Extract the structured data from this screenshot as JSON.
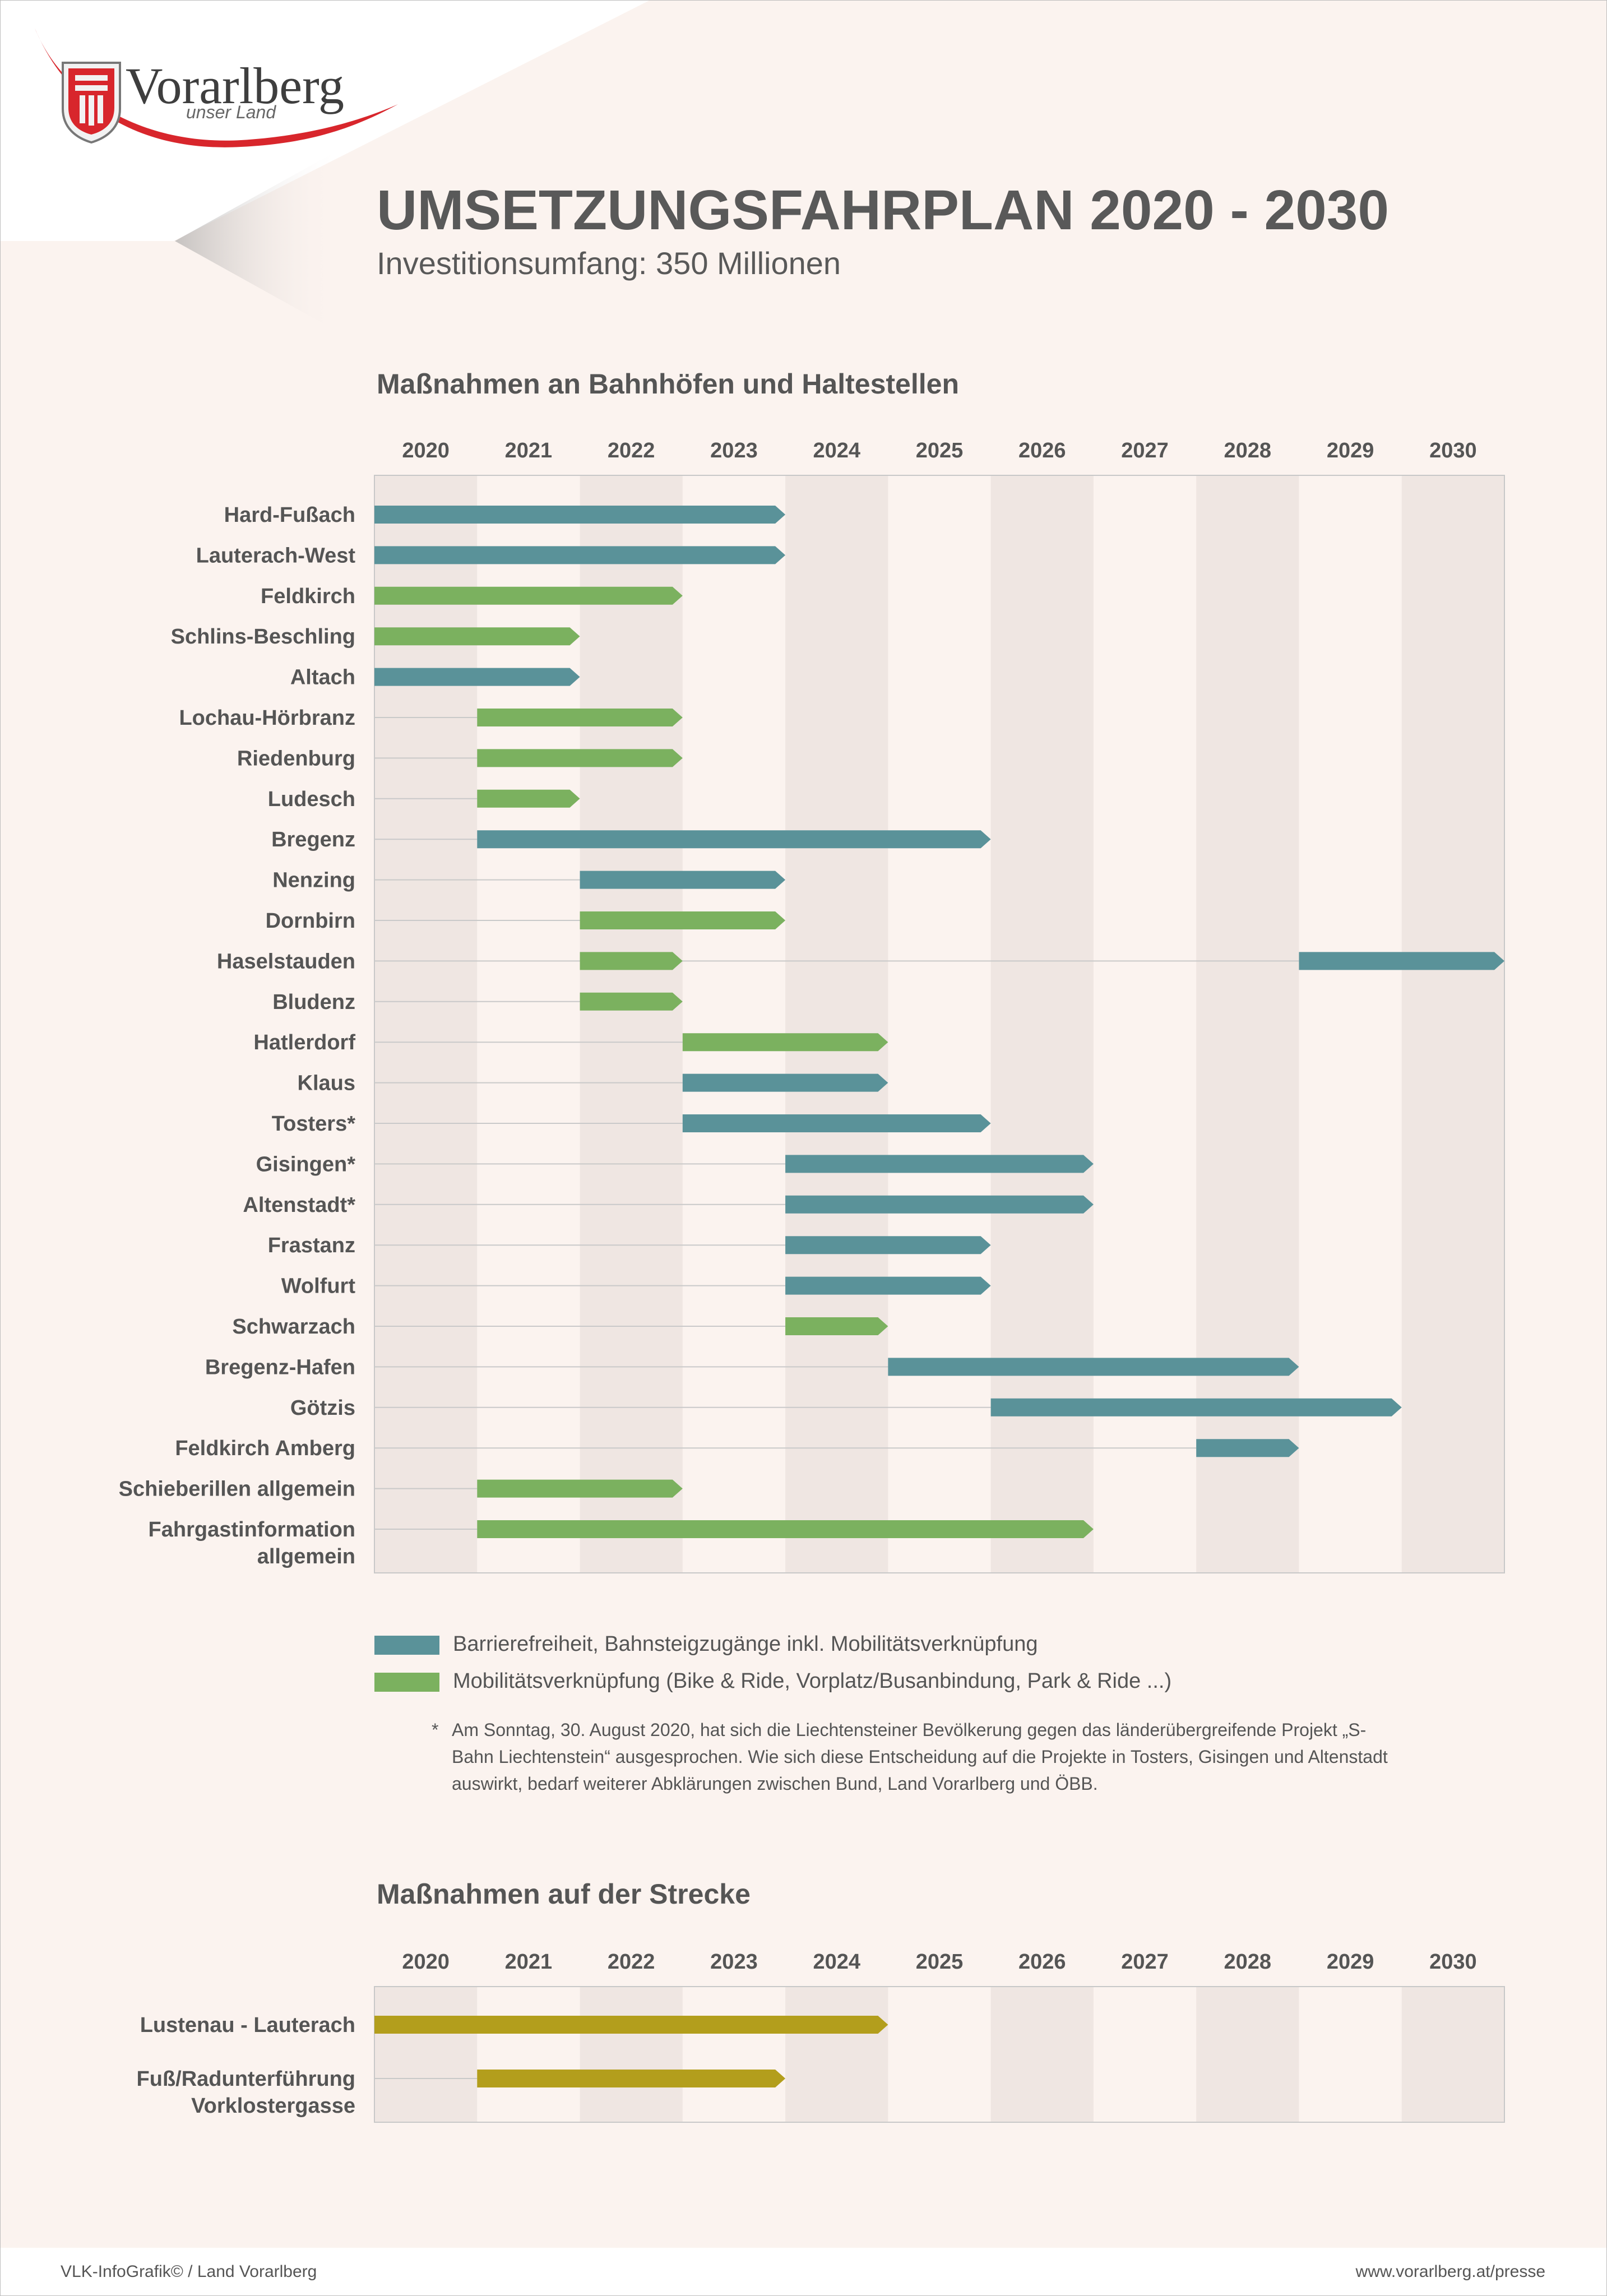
{
  "header": {
    "logo_name": "Vorarlberg",
    "logo_tagline": "unser Land",
    "title": "UMSETZUNGSFAHRPLAN 2020 - 2030",
    "subtitle": "Investitionsumfang: 350 Millionen"
  },
  "colors": {
    "barrier": "#5a9299",
    "mobility": "#7bb15f",
    "track": "#b39e1c",
    "band": "#efe6e2",
    "rowline": "#c9c9c9",
    "frame": "#c8c8c8",
    "text": "#555555"
  },
  "chart_data": [
    {
      "type": "gantt",
      "title": "Maßnahmen an Bahnhöfen und Haltestellen",
      "years": [
        "2020",
        "2021",
        "2022",
        "2023",
        "2024",
        "2025",
        "2026",
        "2027",
        "2028",
        "2029",
        "2030"
      ],
      "rows": [
        {
          "label": "Hard-Fußach",
          "start": 2020,
          "end": 2023,
          "category": "barrier"
        },
        {
          "label": "Lauterach-West",
          "start": 2020,
          "end": 2023,
          "category": "barrier"
        },
        {
          "label": "Feldkirch",
          "start": 2020,
          "end": 2022,
          "category": "mobility"
        },
        {
          "label": "Schlins-Beschling",
          "start": 2020,
          "end": 2021,
          "category": "mobility"
        },
        {
          "label": "Altach",
          "start": 2020,
          "end": 2021,
          "category": "barrier"
        },
        {
          "label": "Lochau-Hörbranz",
          "start": 2021,
          "end": 2022,
          "category": "mobility"
        },
        {
          "label": "Riedenburg",
          "start": 2021,
          "end": 2022,
          "category": "mobility"
        },
        {
          "label": "Ludesch",
          "start": 2021,
          "end": 2021,
          "category": "mobility"
        },
        {
          "label": "Bregenz",
          "start": 2021,
          "end": 2025,
          "category": "barrier"
        },
        {
          "label": "Nenzing",
          "start": 2022,
          "end": 2023,
          "category": "barrier"
        },
        {
          "label": "Dornbirn",
          "start": 2022,
          "end": 2023,
          "category": "mobility"
        },
        {
          "label": "Haselstauden",
          "start": 2022,
          "end": 2022,
          "category": "mobility",
          "extra": {
            "start": 2029,
            "end": 2030,
            "category": "barrier"
          }
        },
        {
          "label": "Bludenz",
          "start": 2022,
          "end": 2022,
          "category": "mobility"
        },
        {
          "label": "Hatlerdorf",
          "start": 2023,
          "end": 2024,
          "category": "mobility"
        },
        {
          "label": "Klaus",
          "start": 2023,
          "end": 2024,
          "category": "barrier"
        },
        {
          "label": "Tosters*",
          "start": 2023,
          "end": 2025,
          "category": "barrier"
        },
        {
          "label": "Gisingen*",
          "start": 2024,
          "end": 2026,
          "category": "barrier"
        },
        {
          "label": "Altenstadt*",
          "start": 2024,
          "end": 2026,
          "category": "barrier"
        },
        {
          "label": "Frastanz",
          "start": 2024,
          "end": 2025,
          "category": "barrier"
        },
        {
          "label": "Wolfurt",
          "start": 2024,
          "end": 2025,
          "category": "barrier"
        },
        {
          "label": "Schwarzach",
          "start": 2024,
          "end": 2024,
          "category": "mobility"
        },
        {
          "label": "Bregenz-Hafen",
          "start": 2025,
          "end": 2028,
          "category": "barrier"
        },
        {
          "label": "Götzis",
          "start": 2026,
          "end": 2029,
          "category": "barrier"
        },
        {
          "label": "Feldkirch Amberg",
          "start": 2028,
          "end": 2028,
          "category": "barrier"
        },
        {
          "label": "Schieberillen allgemein",
          "start": 2021,
          "end": 2022,
          "category": "mobility"
        },
        {
          "label": "Fahrgastinformation allgemein",
          "label_lines": [
            "Fahrgastinformation",
            "allgemein"
          ],
          "start": 2021,
          "end": 2026,
          "category": "mobility"
        }
      ],
      "legend": [
        {
          "category": "barrier",
          "label": "Barrierefreiheit, Bahnsteigzugänge inkl. Mobilitätsverknüpfung"
        },
        {
          "category": "mobility",
          "label": "Mobilitätsverknüpfung (Bike & Ride, Vorplatz/Busanbindung, Park & Ride ...)"
        }
      ],
      "footnote_mark": "*",
      "footnote": "Am Sonntag, 30. August 2020, hat sich die Liechtensteiner Bevölkerung gegen das länderübergreifende Projekt „S-Bahn Liechtenstein“ ausgesprochen. Wie sich diese Entscheidung auf die Projekte in Tosters, Gisingen und Altenstadt auswirkt, bedarf weiterer Abklärungen zwischen Bund, Land Vorarlberg und ÖBB."
    },
    {
      "type": "gantt",
      "title": "Maßnahmen auf der Strecke",
      "years": [
        "2020",
        "2021",
        "2022",
        "2023",
        "2024",
        "2025",
        "2026",
        "2027",
        "2028",
        "2029",
        "2030"
      ],
      "rows": [
        {
          "label": "Lustenau - Lauterach",
          "start": 2020,
          "end": 2024,
          "category": "track"
        },
        {
          "label": "Fuß/Radunterführung Vorklostergasse",
          "label_lines": [
            "Fuß/Radunterführung",
            "Vorklostergasse"
          ],
          "start": 2021,
          "end": 2023,
          "category": "track"
        }
      ]
    }
  ],
  "footer": {
    "left": "VLK-InfoGrafik©   /   Land Vorarlberg",
    "right": "www.vorarlberg.at/presse"
  }
}
